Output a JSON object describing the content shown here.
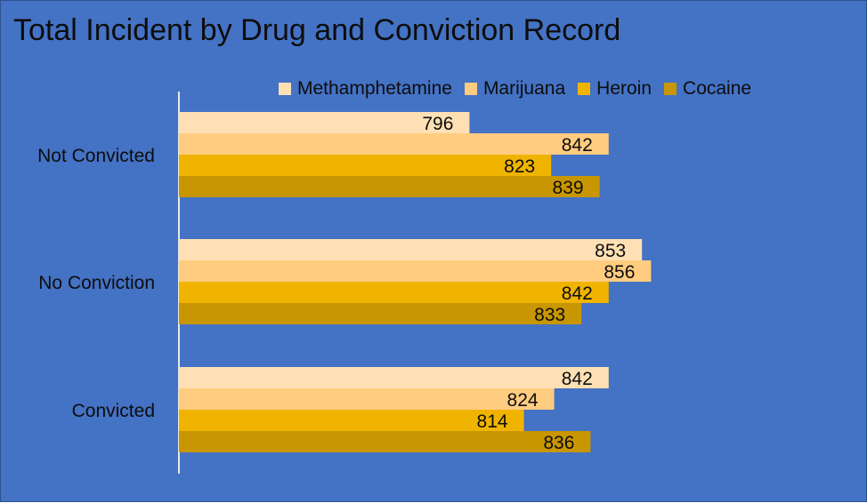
{
  "chart_data": {
    "type": "bar",
    "orientation": "horizontal",
    "title": "Total Incident by Drug and Conviction Record",
    "categories": [
      "Not Convicted",
      "No Conviction",
      "Convicted"
    ],
    "series": [
      {
        "name": "Methamphetamine",
        "color": "#FFE0B5",
        "values": [
          796,
          853,
          842
        ]
      },
      {
        "name": "Marijuana",
        "color": "#FFCC80",
        "values": [
          842,
          856,
          824
        ]
      },
      {
        "name": "Heroin",
        "color": "#F0B400",
        "values": [
          823,
          842,
          814
        ]
      },
      {
        "name": "Cocaine",
        "color": "#C89600",
        "values": [
          839,
          833,
          836
        ]
      }
    ],
    "xlim": [
      700,
      880
    ],
    "data_labels": true,
    "legend_position": "top",
    "gridlines": false,
    "background_color": "#4472C4"
  }
}
